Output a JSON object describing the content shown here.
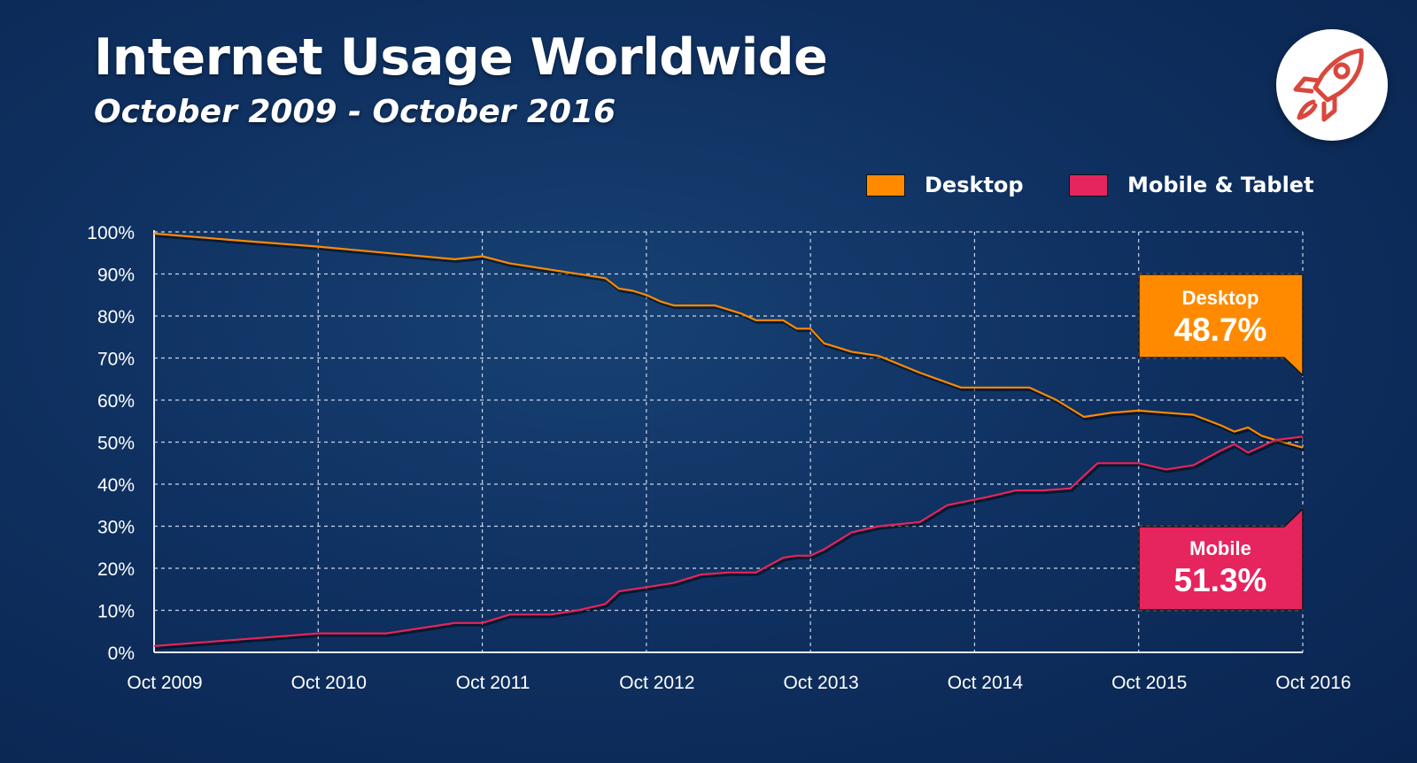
{
  "header": {
    "title": "Internet Usage Worldwide",
    "subtitle": "October 2009 - October 2016"
  },
  "logo": {
    "icon": "rocket-icon",
    "color": "#d9473d"
  },
  "legend": [
    {
      "label": "Desktop",
      "color": "#ff8a00"
    },
    {
      "label": "Mobile & Tablet",
      "color": "#e6245e"
    }
  ],
  "callouts": {
    "desktop": {
      "label": "Desktop",
      "value": "48.7%",
      "color": "#ff8a00"
    },
    "mobile": {
      "label": "Mobile",
      "value": "51.3%",
      "color": "#e6245e"
    }
  },
  "chart_data": {
    "type": "line",
    "title": "Internet Usage Worldwide",
    "subtitle": "October 2009 - October 2016",
    "xlabel": "",
    "ylabel": "",
    "x_range": [
      0,
      84
    ],
    "ylim": [
      0,
      100
    ],
    "y_ticks": [
      0,
      10,
      20,
      30,
      40,
      50,
      60,
      70,
      80,
      90,
      100
    ],
    "y_tick_labels": [
      "0%",
      "10%",
      "20%",
      "30%",
      "40%",
      "50%",
      "60%",
      "70%",
      "80%",
      "90%",
      "100%"
    ],
    "x_ticks": [
      0,
      12,
      24,
      36,
      48,
      60,
      72,
      84
    ],
    "x_tick_labels": [
      "Oct 2009",
      "Oct 2010",
      "Oct 2011",
      "Oct 2012",
      "Oct 2013",
      "Oct 2014",
      "Oct 2015",
      "Oct 2016"
    ],
    "grid": true,
    "legend_position": "top-right",
    "x_unit": "months since Oct 2009",
    "series": [
      {
        "name": "Desktop",
        "color": "#ff8a00",
        "x": [
          0,
          6,
          12,
          17,
          22,
          24,
          26,
          30,
          33,
          34,
          35,
          36,
          37,
          38,
          41,
          43,
          44,
          45,
          46,
          47,
          48,
          49,
          50,
          51,
          53,
          56,
          59,
          61,
          64,
          66,
          68,
          70,
          72,
          74,
          76,
          78,
          79,
          80,
          81,
          82,
          84
        ],
        "values": [
          99.6,
          98.0,
          96.5,
          95.0,
          93.5,
          94.2,
          92.5,
          90.5,
          89.0,
          86.5,
          86.0,
          85.0,
          83.5,
          82.5,
          82.5,
          80.5,
          79.0,
          79.0,
          79.0,
          77.0,
          77.0,
          73.5,
          72.5,
          71.5,
          70.5,
          66.5,
          63.0,
          63.0,
          63.0,
          60.0,
          56.0,
          57.0,
          57.5,
          57.0,
          56.5,
          54.0,
          52.5,
          53.5,
          51.5,
          50.5,
          48.7
        ]
      },
      {
        "name": "Mobile & Tablet",
        "color": "#e6245e",
        "x": [
          0,
          6,
          12,
          17,
          22,
          24,
          26,
          29,
          31,
          33,
          34,
          36,
          38,
          40,
          42,
          44,
          46,
          47,
          48,
          49,
          51,
          53,
          56,
          58,
          61,
          63,
          65,
          67,
          69,
          71,
          72,
          74,
          76,
          78,
          79,
          80,
          81,
          82,
          84
        ],
        "values": [
          1.5,
          3.0,
          4.5,
          4.5,
          7.0,
          7.0,
          9.0,
          9.0,
          10.0,
          11.5,
          14.5,
          15.5,
          16.5,
          18.5,
          19.0,
          19.0,
          22.5,
          23.0,
          23.0,
          24.5,
          28.5,
          30.0,
          31.0,
          35.0,
          37.0,
          38.5,
          38.5,
          39.0,
          45.0,
          45.0,
          45.0,
          43.5,
          44.5,
          48.0,
          49.5,
          47.5,
          49.0,
          50.5,
          51.3
        ]
      }
    ]
  }
}
